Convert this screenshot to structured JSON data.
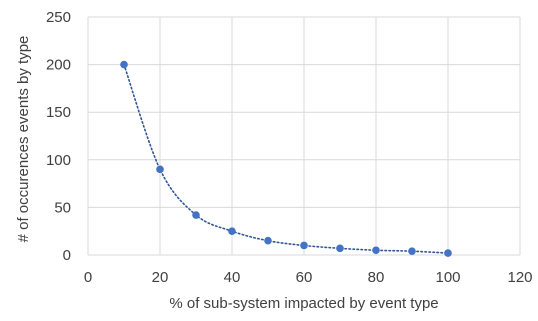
{
  "chart_data": {
    "type": "scatter",
    "title": "",
    "xlabel": "% of sub-system impacted by event type",
    "ylabel": "# of occurences events by type",
    "xlim": [
      0,
      120
    ],
    "ylim": [
      0,
      250
    ],
    "xticks": [
      "0",
      "20",
      "40",
      "60",
      "80",
      "100",
      "120"
    ],
    "yticks": [
      "0",
      "50",
      "100",
      "150",
      "200",
      "250"
    ],
    "grid": true,
    "trendline": "dotted",
    "colors": {
      "marker": "#4472c4",
      "trendline": "#2f5597",
      "grid": "#d9d9d9",
      "axis_text": "#404040"
    },
    "series": [
      {
        "x": [
          10,
          20,
          30,
          40,
          50,
          60,
          70,
          80,
          90,
          100
        ],
        "y": [
          200,
          90,
          42,
          25,
          15,
          10,
          7,
          5,
          4,
          2
        ]
      }
    ]
  }
}
